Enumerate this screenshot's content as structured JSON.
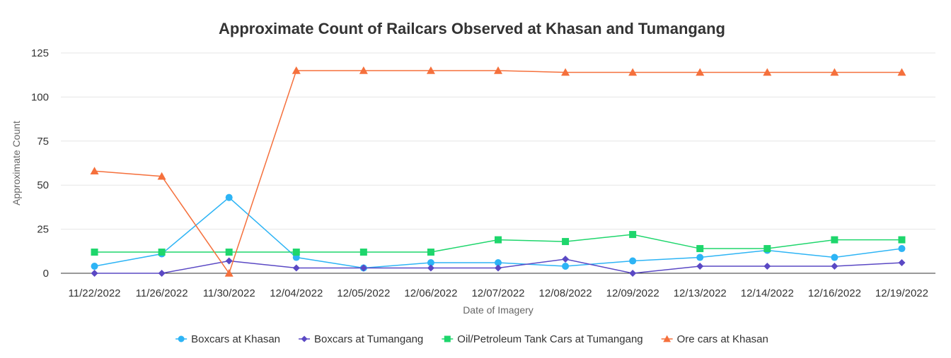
{
  "chart_data": {
    "type": "line",
    "title": "Approximate Count of Railcars Observed at Khasan and Tumangang",
    "xlabel": "Date of Imagery",
    "ylabel": "Approximate Count",
    "ylim": [
      0,
      125
    ],
    "yticks": [
      0,
      25,
      50,
      75,
      100,
      125
    ],
    "grid": true,
    "legend_position": "bottom",
    "categories": [
      "11/22/2022",
      "11/26/2022",
      "11/30/2022",
      "12/04/2022",
      "12/05/2022",
      "12/06/2022",
      "12/07/2022",
      "12/08/2022",
      "12/09/2022",
      "12/13/2022",
      "12/14/2022",
      "12/16/2022",
      "12/19/2022"
    ],
    "series": [
      {
        "name": "Boxcars at Khasan",
        "color": "#2db4f5",
        "marker": "circle",
        "values": [
          4,
          11,
          43,
          9,
          3,
          6,
          6,
          4,
          7,
          9,
          13,
          9,
          14
        ]
      },
      {
        "name": "Boxcars at Tumangang",
        "color": "#5a48c4",
        "marker": "diamond",
        "values": [
          0,
          0,
          7,
          3,
          3,
          3,
          3,
          8,
          0,
          4,
          4,
          4,
          6
        ]
      },
      {
        "name": "Oil/Petroleum Tank Cars at Tumangang",
        "color": "#1ed66c",
        "marker": "square",
        "values": [
          12,
          12,
          12,
          12,
          12,
          12,
          19,
          18,
          22,
          14,
          14,
          19,
          19
        ]
      },
      {
        "name": "Ore cars at Khasan",
        "color": "#f5703c",
        "marker": "triangle",
        "values": [
          58,
          55,
          0,
          115,
          115,
          115,
          115,
          114,
          114,
          114,
          114,
          114,
          114
        ]
      }
    ]
  }
}
